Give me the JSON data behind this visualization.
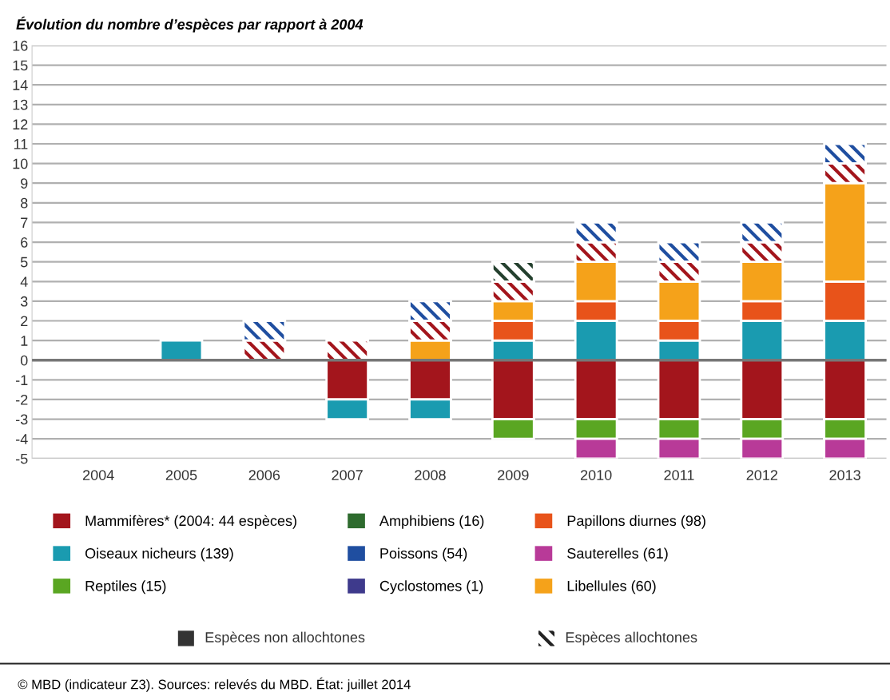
{
  "chart_data": {
    "type": "bar",
    "stacked": true,
    "title": "Évolution du nombre d’espèces par rapport à 2004",
    "categories": [
      "2004",
      "2005",
      "2006",
      "2007",
      "2008",
      "2009",
      "2010",
      "2011",
      "2012",
      "2013"
    ],
    "ylim": [
      -5,
      16
    ],
    "yticks": [
      -5,
      -4,
      -3,
      -2,
      -1,
      0,
      1,
      2,
      3,
      4,
      5,
      6,
      7,
      8,
      9,
      10,
      11,
      12,
      13,
      14,
      15,
      16
    ],
    "grid": "y",
    "legend": "bottom",
    "ref_lines": [
      {
        "axis": "y",
        "value": 0,
        "color": "#777777"
      }
    ],
    "series": [
      {
        "name": "Mammifères* (2004: 44 espèces)",
        "color": "#a3151c",
        "values": [
          null,
          null,
          null,
          -2,
          -2,
          -3,
          -3,
          -3,
          -3,
          -3
        ]
      },
      {
        "name": "Oiseaux nicheurs (139)",
        "color": "#1a9bb0",
        "values": [
          null,
          1,
          null,
          -1,
          -1,
          1,
          2,
          1,
          2,
          2
        ]
      },
      {
        "name": "Reptiles (15)",
        "color": "#5aa622",
        "values": [
          null,
          null,
          null,
          null,
          null,
          -1,
          -1,
          -1,
          -1,
          -1
        ]
      },
      {
        "name": "Amphibiens (16)",
        "color": "#2e6b2e",
        "values": [
          null,
          null,
          null,
          null,
          null,
          null,
          null,
          null,
          null,
          null
        ]
      },
      {
        "name": "Poissons (54)",
        "color": "#1f4ea0",
        "values": [
          null,
          null,
          null,
          null,
          null,
          null,
          null,
          null,
          null,
          null
        ]
      },
      {
        "name": "Cyclostomes (1)",
        "color": "#3e3a8c",
        "values": [
          null,
          null,
          null,
          null,
          null,
          null,
          null,
          null,
          null,
          null
        ]
      },
      {
        "name": "Papillons diurnes (98)",
        "color": "#e8531a",
        "values": [
          null,
          null,
          null,
          null,
          null,
          1,
          1,
          1,
          1,
          2
        ]
      },
      {
        "name": "Sauterelles (61)",
        "color": "#b83a98",
        "values": [
          null,
          null,
          null,
          null,
          null,
          null,
          -1,
          -1,
          -1,
          -1
        ]
      },
      {
        "name": "Libellules (60)",
        "color": "#f5a21a",
        "values": [
          null,
          null,
          null,
          null,
          1,
          1,
          2,
          2,
          2,
          5
        ]
      },
      {
        "color": "#a3151c",
        "values": [
          null,
          null,
          1,
          1,
          1,
          1,
          1,
          1,
          1,
          1
        ]
      },
      {
        "color": "#24402e",
        "values": [
          null,
          null,
          null,
          null,
          null,
          1,
          null,
          null,
          null,
          null
        ]
      },
      {
        "color": "#1f4ea0",
        "values": [
          null,
          null,
          1,
          null,
          1,
          null,
          1,
          1,
          1,
          1
        ]
      }
    ],
    "annotations": [
      "Espèces non allochtones",
      "Espèces allochtones",
      "© MBD (indicateur Z3). Sources: relevés du MBD. État: juillet 2014"
    ]
  }
}
